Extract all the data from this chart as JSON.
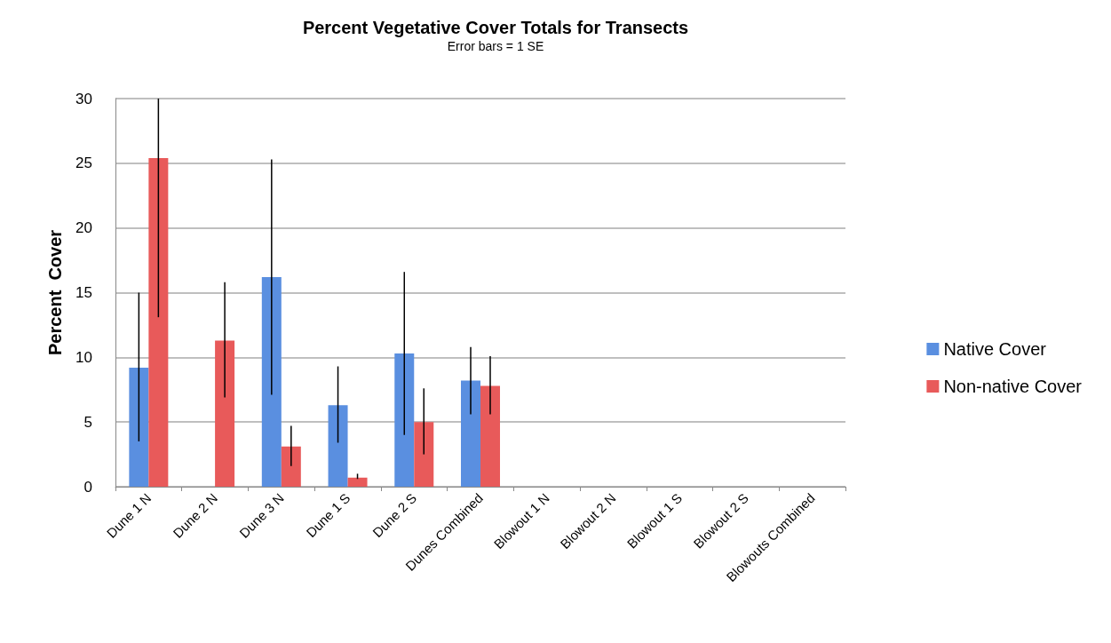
{
  "chart_data": {
    "type": "bar",
    "title": "Percent Vegetative Cover Totals for Transects",
    "subtitle": "Error bars = 1 SE",
    "ylabel": "Percent  Cover",
    "categories": [
      "Dune 1 N",
      "Dune 2 N",
      "Dune 3 N",
      "Dune 1 S",
      "Dune 2 S",
      "Dunes Combined",
      "Blowout 1 N",
      "Blowout 2 N",
      "Blowout 1 S",
      "Blowout 2 S",
      "Blowouts Combined"
    ],
    "series": [
      {
        "name": "Native Cover",
        "color": "#5a8fe0",
        "values": [
          9.2,
          0,
          16.2,
          6.3,
          10.3,
          8.2,
          0,
          0,
          0,
          0,
          0
        ],
        "errors": [
          [
            3.5,
            15.0
          ],
          null,
          [
            7.1,
            25.3
          ],
          [
            3.4,
            9.3
          ],
          [
            4.0,
            16.6
          ],
          [
            5.6,
            10.8
          ],
          null,
          null,
          null,
          null,
          null
        ]
      },
      {
        "name": "Non-native Cover",
        "color": "#e85a5a",
        "values": [
          25.4,
          11.3,
          3.1,
          0.7,
          5.0,
          7.8,
          0,
          0,
          0,
          0,
          0
        ],
        "errors": [
          [
            13.1,
            30.0
          ],
          [
            6.9,
            15.8
          ],
          [
            1.6,
            4.7
          ],
          [
            0.6,
            1.0
          ],
          [
            2.5,
            7.6
          ],
          [
            5.6,
            10.1
          ],
          null,
          null,
          null,
          null,
          null
        ]
      }
    ],
    "ylim": [
      0,
      30
    ],
    "yticks": [
      0,
      5,
      10,
      15,
      20,
      25,
      30
    ],
    "grid": "y",
    "legend": "right"
  }
}
